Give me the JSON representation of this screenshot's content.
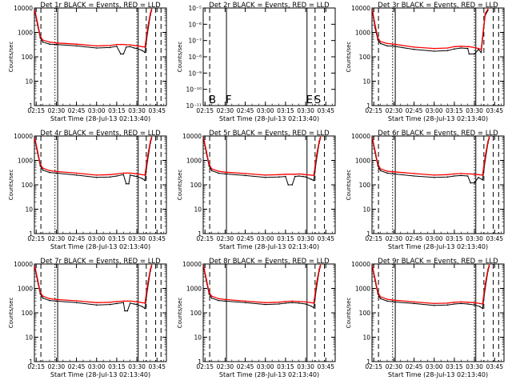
{
  "page": {
    "x_ticks": [
      "02:15",
      "02:30",
      "02:45",
      "03:00",
      "03:15",
      "03:30",
      "03:45"
    ],
    "xlabel": "Start Time (28-Jul-13 02:13:40)",
    "ylabel": "Counts/sec",
    "colors": {
      "events": "#000000",
      "lld": "#ff0000",
      "frame": "#000000",
      "background": "#ffffff"
    }
  },
  "chart_data": [
    {
      "type": "line",
      "title": "Det 1r BLACK = Events, RED = LLD",
      "y_scale": "log",
      "ylim": [
        1,
        10000
      ],
      "y_ticks": [
        "1",
        "10",
        "100",
        "1000",
        "10000"
      ],
      "xlim": [
        "02:13:40",
        "03:52:00"
      ],
      "x": [
        "02:14",
        "02:16",
        "02:18",
        "02:20",
        "02:25",
        "02:30",
        "02:45",
        "03:00",
        "03:10",
        "03:15",
        "03:18",
        "03:20",
        "03:22",
        "03:25",
        "03:28",
        "03:30",
        "03:34",
        "03:36",
        "03:38",
        "03:40",
        "03:41"
      ],
      "series": [
        {
          "name": "Events",
          "values": [
            7000,
            2000,
            600,
            400,
            330,
            320,
            280,
            230,
            240,
            270,
            130,
            130,
            250,
            260,
            230,
            220,
            180,
            150,
            1000,
            5000,
            8000
          ]
        },
        {
          "name": "LLD",
          "values": [
            8000,
            2500,
            700,
            480,
            400,
            370,
            330,
            280,
            290,
            320,
            320,
            320,
            310,
            310,
            290,
            280,
            260,
            250,
            1500,
            6000,
            9000
          ]
        }
      ],
      "vlines": [
        {
          "label": "",
          "time": "02:18:30",
          "style": "dashed"
        },
        {
          "label": "",
          "time": "02:29",
          "style": "dotted"
        },
        {
          "label": "",
          "time": "02:31",
          "style": "solid"
        },
        {
          "label": "",
          "time": "03:30",
          "style": "dotted"
        },
        {
          "label": "",
          "time": "03:31",
          "style": "solid"
        },
        {
          "label": "",
          "time": "03:37",
          "style": "dashed"
        },
        {
          "label": "",
          "time": "03:44",
          "style": "dashed"
        },
        {
          "label": "",
          "time": "03:48",
          "style": "dashed"
        }
      ]
    },
    {
      "type": "line",
      "title": "Det 2r BLACK = Events, RED = LLD",
      "y_scale": "log",
      "ylim": [
        1e-11,
        1e-05
      ],
      "y_ticks": [
        "10⁻¹¹",
        "10⁻¹⁰",
        "10⁻⁹",
        "10⁻⁸",
        "10⁻⁷",
        "10⁻⁶",
        "10⁻⁵"
      ],
      "xlim": [
        "02:13:40",
        "03:52:00"
      ],
      "x": [],
      "series": [],
      "vlines": [
        {
          "label": "B",
          "time": "02:18:30",
          "style": "dashed"
        },
        {
          "label": "F",
          "time": "02:31",
          "style": "solid"
        },
        {
          "label": "E",
          "time": "03:31",
          "style": "solid"
        },
        {
          "label": "S",
          "time": "03:37",
          "style": "dashed"
        },
        {
          "label": "",
          "time": "03:44",
          "style": "dashed"
        }
      ]
    },
    {
      "type": "line",
      "title": "Det 3r BLACK = Events, RED = LLD",
      "y_scale": "log",
      "ylim": [
        1,
        10000
      ],
      "y_ticks": [
        "1",
        "10",
        "100",
        "1000",
        "10000"
      ],
      "xlim": [
        "02:13:40",
        "03:52:00"
      ],
      "x": [
        "02:14",
        "02:16",
        "02:18",
        "02:20",
        "02:25",
        "02:30",
        "02:45",
        "03:00",
        "03:10",
        "03:15",
        "03:20",
        "03:25",
        "03:26",
        "03:30",
        "03:33",
        "03:35",
        "03:37",
        "03:38",
        "03:40"
      ],
      "series": [
        {
          "name": "Events",
          "values": [
            7000,
            1500,
            500,
            350,
            280,
            270,
            200,
            170,
            180,
            210,
            230,
            220,
            130,
            130,
            200,
            150,
            1500,
            5000,
            8000
          ]
        },
        {
          "name": "LLD",
          "values": [
            8000,
            2000,
            600,
            420,
            350,
            330,
            250,
            220,
            230,
            260,
            270,
            260,
            260,
            240,
            220,
            200,
            2000,
            6000,
            9000
          ]
        }
      ],
      "vlines": [
        {
          "label": "",
          "time": "02:18:30",
          "style": "dashed"
        },
        {
          "label": "",
          "time": "02:29",
          "style": "dotted"
        },
        {
          "label": "",
          "time": "02:31",
          "style": "solid"
        },
        {
          "label": "",
          "time": "03:30",
          "style": "dotted"
        },
        {
          "label": "",
          "time": "03:31",
          "style": "solid"
        },
        {
          "label": "",
          "time": "03:37",
          "style": "dashed"
        },
        {
          "label": "",
          "time": "03:44",
          "style": "dashed"
        },
        {
          "label": "",
          "time": "03:48",
          "style": "dashed"
        }
      ]
    },
    {
      "type": "line",
      "title": "Det 4r BLACK = Events, RED = LLD",
      "y_scale": "log",
      "ylim": [
        1,
        10000
      ],
      "y_ticks": [
        "1",
        "10",
        "100",
        "1000",
        "10000"
      ],
      "xlim": [
        "02:13:40",
        "03:52:00"
      ],
      "x": [
        "02:14",
        "02:16",
        "02:18",
        "02:20",
        "02:25",
        "02:30",
        "02:45",
        "03:00",
        "03:10",
        "03:15",
        "03:20",
        "03:22",
        "03:24",
        "03:25",
        "03:28",
        "03:30",
        "03:34",
        "03:36",
        "03:38",
        "03:40",
        "03:41"
      ],
      "series": [
        {
          "name": "Events",
          "values": [
            7000,
            2000,
            600,
            400,
            320,
            300,
            250,
            200,
            210,
            230,
            260,
            110,
            110,
            250,
            230,
            220,
            180,
            150,
            1000,
            5000,
            8000
          ]
        },
        {
          "name": "LLD",
          "values": [
            8000,
            2500,
            700,
            480,
            380,
            350,
            300,
            250,
            260,
            280,
            300,
            300,
            300,
            300,
            290,
            280,
            260,
            250,
            1500,
            6000,
            9000
          ]
        }
      ],
      "vlines": [
        {
          "label": "",
          "time": "02:18:30",
          "style": "dashed"
        },
        {
          "label": "",
          "time": "02:29",
          "style": "dotted"
        },
        {
          "label": "",
          "time": "02:31",
          "style": "solid"
        },
        {
          "label": "",
          "time": "03:30",
          "style": "dotted"
        },
        {
          "label": "",
          "time": "03:31",
          "style": "solid"
        },
        {
          "label": "",
          "time": "03:37",
          "style": "dashed"
        },
        {
          "label": "",
          "time": "03:44",
          "style": "dashed"
        },
        {
          "label": "",
          "time": "03:48",
          "style": "dashed"
        }
      ]
    },
    {
      "type": "line",
      "title": "Det 5r BLACK = Events, RED = LLD",
      "y_scale": "log",
      "ylim": [
        1,
        10000
      ],
      "y_ticks": [
        "1",
        "10",
        "100",
        "1000",
        "10000"
      ],
      "xlim": [
        "02:13:40",
        "03:52:00"
      ],
      "x": [
        "02:14",
        "02:16",
        "02:18",
        "02:20",
        "02:25",
        "02:30",
        "02:45",
        "03:00",
        "03:10",
        "03:15",
        "03:17",
        "03:20",
        "03:22",
        "03:25",
        "03:28",
        "03:30",
        "03:34",
        "03:36",
        "03:38",
        "03:40",
        "03:41"
      ],
      "series": [
        {
          "name": "Events",
          "values": [
            7000,
            2000,
            600,
            380,
            300,
            280,
            240,
            200,
            210,
            220,
            100,
            100,
            220,
            230,
            220,
            210,
            170,
            150,
            1000,
            5000,
            8000
          ]
        },
        {
          "name": "LLD",
          "values": [
            8000,
            2500,
            700,
            450,
            360,
            330,
            290,
            250,
            260,
            270,
            270,
            270,
            270,
            280,
            270,
            260,
            250,
            240,
            1500,
            6000,
            9000
          ]
        }
      ],
      "vlines": [
        {
          "label": "",
          "time": "02:18:30",
          "style": "dashed"
        },
        {
          "label": "",
          "time": "02:31",
          "style": "solid"
        },
        {
          "label": "",
          "time": "03:31",
          "style": "solid"
        },
        {
          "label": "",
          "time": "03:37",
          "style": "dashed"
        },
        {
          "label": "",
          "time": "03:44",
          "style": "dashed"
        }
      ]
    },
    {
      "type": "line",
      "title": "Det 6r BLACK = Events, RED = LLD",
      "y_scale": "log",
      "ylim": [
        1,
        10000
      ],
      "y_ticks": [
        "1",
        "10",
        "100",
        "1000",
        "10000"
      ],
      "xlim": [
        "02:13:40",
        "03:52:00"
      ],
      "x": [
        "02:14",
        "02:16",
        "02:18",
        "02:20",
        "02:25",
        "02:30",
        "02:45",
        "03:00",
        "03:10",
        "03:15",
        "03:20",
        "03:25",
        "03:27",
        "03:30",
        "03:33",
        "03:36",
        "03:38",
        "03:40",
        "03:41"
      ],
      "series": [
        {
          "name": "Events",
          "values": [
            7000,
            2000,
            600,
            380,
            300,
            280,
            230,
            200,
            210,
            230,
            240,
            230,
            120,
            120,
            200,
            160,
            1000,
            5000,
            8000
          ]
        },
        {
          "name": "LLD",
          "values": [
            8000,
            2500,
            700,
            450,
            360,
            340,
            290,
            250,
            260,
            280,
            290,
            280,
            280,
            270,
            260,
            250,
            1500,
            6000,
            9000
          ]
        }
      ],
      "vlines": [
        {
          "label": "",
          "time": "02:18:30",
          "style": "dashed"
        },
        {
          "label": "",
          "time": "02:29",
          "style": "dotted"
        },
        {
          "label": "",
          "time": "02:31",
          "style": "solid"
        },
        {
          "label": "",
          "time": "03:30",
          "style": "dotted"
        },
        {
          "label": "",
          "time": "03:31",
          "style": "solid"
        },
        {
          "label": "",
          "time": "03:37",
          "style": "dashed"
        },
        {
          "label": "",
          "time": "03:44",
          "style": "dashed"
        },
        {
          "label": "",
          "time": "03:48",
          "style": "dashed"
        }
      ]
    },
    {
      "type": "line",
      "title": "Det 7r BLACK = Events, RED = LLD",
      "y_scale": "log",
      "ylim": [
        1,
        10000
      ],
      "y_ticks": [
        "1",
        "10",
        "100",
        "1000",
        "10000"
      ],
      "xlim": [
        "02:13:40",
        "03:52:00"
      ],
      "x": [
        "02:14",
        "02:16",
        "02:18",
        "02:20",
        "02:25",
        "02:30",
        "02:45",
        "03:00",
        "03:10",
        "03:15",
        "03:20",
        "03:21",
        "03:23",
        "03:25",
        "03:28",
        "03:30",
        "03:34",
        "03:36",
        "03:38",
        "03:40",
        "03:41"
      ],
      "series": [
        {
          "name": "Events",
          "values": [
            7000,
            2000,
            600,
            400,
            320,
            300,
            260,
            210,
            220,
            240,
            260,
            120,
            120,
            250,
            230,
            220,
            180,
            150,
            1000,
            5000,
            8000
          ]
        },
        {
          "name": "LLD",
          "values": [
            8000,
            2500,
            700,
            480,
            380,
            350,
            310,
            260,
            270,
            290,
            300,
            300,
            300,
            300,
            290,
            280,
            260,
            250,
            1500,
            6000,
            9000
          ]
        }
      ],
      "vlines": [
        {
          "label": "",
          "time": "02:18:30",
          "style": "dashed"
        },
        {
          "label": "",
          "time": "02:29",
          "style": "dotted"
        },
        {
          "label": "",
          "time": "02:31",
          "style": "solid"
        },
        {
          "label": "",
          "time": "03:30",
          "style": "dotted"
        },
        {
          "label": "",
          "time": "03:31",
          "style": "solid"
        },
        {
          "label": "",
          "time": "03:37",
          "style": "dashed"
        },
        {
          "label": "",
          "time": "03:44",
          "style": "dashed"
        },
        {
          "label": "",
          "time": "03:48",
          "style": "dashed"
        }
      ]
    },
    {
      "type": "line",
      "title": "Det 8r BLACK = Events, RED = LLD",
      "y_scale": "log",
      "ylim": [
        1,
        10000
      ],
      "y_ticks": [
        "1",
        "10",
        "100",
        "1000",
        "10000"
      ],
      "xlim": [
        "02:13:40",
        "03:52:00"
      ],
      "x": [
        "02:14",
        "02:16",
        "02:18",
        "02:20",
        "02:25",
        "02:30",
        "02:45",
        "03:00",
        "03:10",
        "03:15",
        "03:20",
        "03:25",
        "03:30",
        "03:34",
        "03:36",
        "03:38",
        "03:40",
        "03:41"
      ],
      "series": [
        {
          "name": "Events",
          "values": [
            7000,
            2000,
            600,
            400,
            320,
            300,
            260,
            220,
            230,
            250,
            260,
            250,
            230,
            190,
            160,
            1000,
            5000,
            8000
          ]
        },
        {
          "name": "LLD",
          "values": [
            8000,
            2500,
            700,
            480,
            380,
            350,
            300,
            260,
            270,
            290,
            300,
            290,
            280,
            260,
            250,
            1500,
            6000,
            9000
          ]
        }
      ],
      "vlines": [
        {
          "label": "",
          "time": "02:18:30",
          "style": "dashed"
        },
        {
          "label": "",
          "time": "02:31",
          "style": "solid"
        },
        {
          "label": "",
          "time": "03:31",
          "style": "solid"
        },
        {
          "label": "",
          "time": "03:37",
          "style": "dashed"
        },
        {
          "label": "",
          "time": "03:44",
          "style": "dashed"
        }
      ]
    },
    {
      "type": "line",
      "title": "Det 9r BLACK = Events, RED = LLD",
      "y_scale": "log",
      "ylim": [
        1,
        10000
      ],
      "y_ticks": [
        "1",
        "10",
        "100",
        "1000",
        "10000"
      ],
      "xlim": [
        "02:13:40",
        "03:52:00"
      ],
      "x": [
        "02:14",
        "02:16",
        "02:18",
        "02:20",
        "02:25",
        "02:30",
        "02:45",
        "03:00",
        "03:10",
        "03:15",
        "03:20",
        "03:25",
        "03:30",
        "03:34",
        "03:36",
        "03:38",
        "03:40",
        "03:41"
      ],
      "series": [
        {
          "name": "Events",
          "values": [
            7000,
            2000,
            600,
            380,
            300,
            280,
            240,
            200,
            210,
            230,
            240,
            230,
            210,
            180,
            150,
            1000,
            5000,
            8000
          ]
        },
        {
          "name": "LLD",
          "values": [
            8000,
            2500,
            700,
            450,
            360,
            330,
            280,
            240,
            250,
            270,
            280,
            270,
            260,
            240,
            230,
            1500,
            6000,
            9000
          ]
        }
      ],
      "vlines": [
        {
          "label": "",
          "time": "02:18:30",
          "style": "dashed"
        },
        {
          "label": "",
          "time": "02:29",
          "style": "dotted"
        },
        {
          "label": "",
          "time": "02:31",
          "style": "solid"
        },
        {
          "label": "",
          "time": "03:30",
          "style": "dotted"
        },
        {
          "label": "",
          "time": "03:31",
          "style": "solid"
        },
        {
          "label": "",
          "time": "03:37",
          "style": "dashed"
        },
        {
          "label": "",
          "time": "03:44",
          "style": "dashed"
        },
        {
          "label": "",
          "time": "03:48",
          "style": "dashed"
        }
      ]
    }
  ]
}
